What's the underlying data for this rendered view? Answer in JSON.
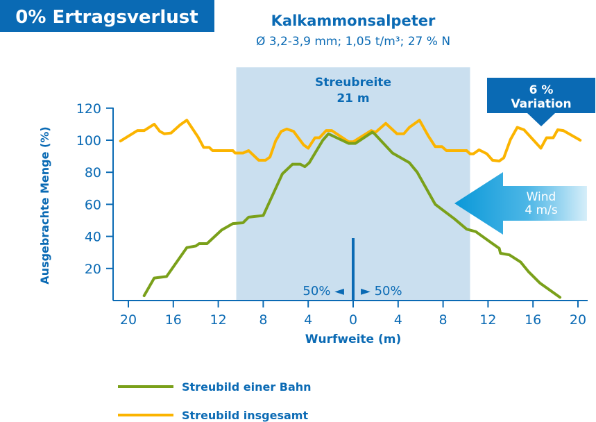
{
  "header": {
    "badge": "0% Ertragsverlust",
    "title": "Kalkammonsalpeter",
    "subtitle": "Ø 3,2-3,9 mm; 1,05 t/m³; 27 % N"
  },
  "annotations": {
    "band_label_1": "Streubreite",
    "band_label_2": "21 m",
    "variation_1": "6 %",
    "variation_2": "Variation",
    "wind_1": "Wind",
    "wind_2": "4 m/s",
    "left_share": "50% ◄",
    "right_share": "► 50%"
  },
  "colors": {
    "blue": "#0a6ab4",
    "green": "#7aa01a",
    "orange": "#fbb400",
    "band": "#cadfef",
    "wind": "#12a0dc"
  },
  "chart_data": {
    "type": "line",
    "xlabel": "Wurfweite (m)",
    "ylabel": "Ausgebrachte Menge (%)",
    "xlim": [
      -21,
      21
    ],
    "ylim": [
      0,
      120
    ],
    "xticks": [
      -20,
      -16,
      -12,
      -8,
      -4,
      0,
      4,
      8,
      12,
      16,
      20
    ],
    "xtick_labels": [
      "20",
      "16",
      "12",
      "8",
      "4",
      "0",
      "4",
      "8",
      "12",
      "16",
      "20"
    ],
    "yticks": [
      20,
      40,
      60,
      80,
      100,
      120
    ],
    "ytick_labels": [
      "20",
      "40",
      "60",
      "80",
      "100",
      "120"
    ],
    "band": [
      -10.4,
      10.4
    ],
    "legend_position": "bottom-left",
    "series": [
      {
        "name": "Streubild einer Bahn",
        "color": "#7aa01a",
        "points": [
          [
            -18.6,
            3
          ],
          [
            -17.7,
            14
          ],
          [
            -16.6,
            15
          ],
          [
            -14.8,
            33
          ],
          [
            -14,
            34
          ],
          [
            -13.7,
            35.5
          ],
          [
            -13,
            35.5
          ],
          [
            -11.7,
            44
          ],
          [
            -10.7,
            48
          ],
          [
            -9.8,
            48.5
          ],
          [
            -9.3,
            52
          ],
          [
            -8,
            53
          ],
          [
            -6.3,
            79
          ],
          [
            -5.4,
            85
          ],
          [
            -4.7,
            85
          ],
          [
            -4.3,
            83.5
          ],
          [
            -3.9,
            86
          ],
          [
            -2.7,
            100
          ],
          [
            -2.2,
            104
          ],
          [
            -1,
            100
          ],
          [
            -0.4,
            98
          ],
          [
            0.2,
            98
          ],
          [
            1.7,
            105
          ],
          [
            1.9,
            104
          ],
          [
            3.5,
            92
          ],
          [
            5,
            86
          ],
          [
            5.7,
            80
          ],
          [
            7.3,
            60
          ],
          [
            9,
            51
          ],
          [
            10.1,
            44.5
          ],
          [
            10.9,
            43
          ],
          [
            12.3,
            36
          ],
          [
            13,
            32.5
          ],
          [
            13.1,
            29.5
          ],
          [
            13.9,
            28.5
          ],
          [
            14.9,
            24
          ],
          [
            15.6,
            18
          ],
          [
            16.6,
            11
          ],
          [
            18.4,
            2
          ]
        ]
      },
      {
        "name": "Streubild insgesamt",
        "color": "#fbb400",
        "points": [
          [
            -20.7,
            99.5
          ],
          [
            -19.2,
            106
          ],
          [
            -18.6,
            106
          ],
          [
            -17.7,
            110
          ],
          [
            -17.2,
            105.5
          ],
          [
            -16.8,
            104
          ],
          [
            -16.2,
            104.5
          ],
          [
            -15.4,
            109.5
          ],
          [
            -14.8,
            112.5
          ],
          [
            -13.8,
            102
          ],
          [
            -13.3,
            95.5
          ],
          [
            -12.8,
            95.5
          ],
          [
            -12.5,
            93.5
          ],
          [
            -10.7,
            93.5
          ],
          [
            -10.5,
            92
          ],
          [
            -9.8,
            92
          ],
          [
            -9.3,
            93.5
          ],
          [
            -8.4,
            87.5
          ],
          [
            -7.8,
            87.5
          ],
          [
            -7.4,
            89.5
          ],
          [
            -6.9,
            99.5
          ],
          [
            -6.4,
            105.5
          ],
          [
            -5.9,
            107
          ],
          [
            -5.3,
            105.5
          ],
          [
            -4.4,
            97
          ],
          [
            -4,
            95
          ],
          [
            -3.4,
            101.5
          ],
          [
            -3,
            101.5
          ],
          [
            -2.4,
            106
          ],
          [
            -1.9,
            106
          ],
          [
            -0.4,
            99
          ],
          [
            0,
            99
          ],
          [
            1.6,
            106
          ],
          [
            2,
            105
          ],
          [
            2.9,
            110.5
          ],
          [
            3.9,
            104
          ],
          [
            4.5,
            104
          ],
          [
            5,
            108
          ],
          [
            5.9,
            112.5
          ],
          [
            6.7,
            102.5
          ],
          [
            7.3,
            96
          ],
          [
            7.9,
            96
          ],
          [
            8.3,
            93.5
          ],
          [
            10.1,
            93.5
          ],
          [
            10.4,
            91.5
          ],
          [
            10.7,
            91.5
          ],
          [
            11.2,
            94
          ],
          [
            11.9,
            91.5
          ],
          [
            12.4,
            87.5
          ],
          [
            13,
            87
          ],
          [
            13.4,
            89
          ],
          [
            14,
            100.5
          ],
          [
            14.6,
            108
          ],
          [
            15.2,
            106.5
          ],
          [
            16.7,
            95
          ],
          [
            17.2,
            101.5
          ],
          [
            17.8,
            101.5
          ],
          [
            18.2,
            106.5
          ],
          [
            18.7,
            106
          ],
          [
            20.2,
            100
          ]
        ]
      }
    ]
  }
}
